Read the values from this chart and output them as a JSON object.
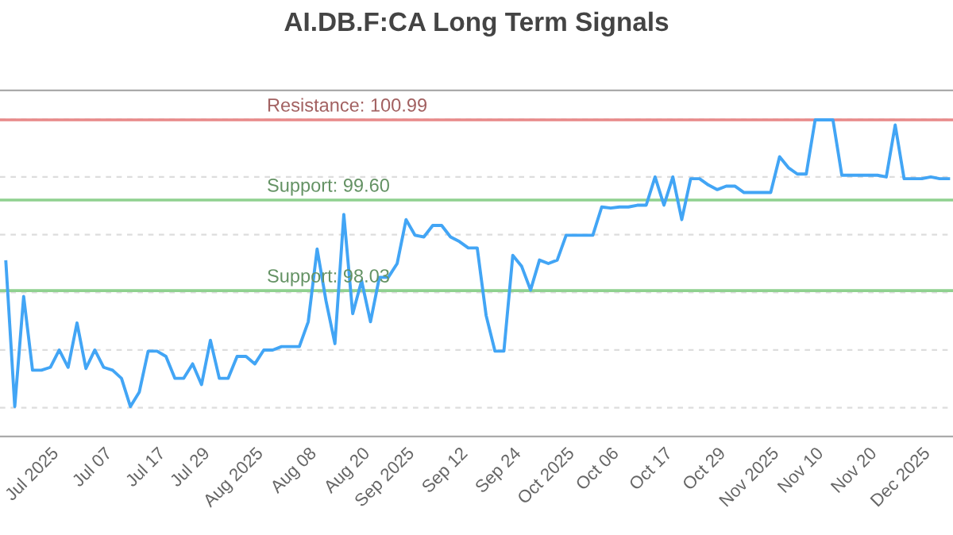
{
  "chart_data": {
    "type": "line",
    "title": "AI.DB.F:CA Long Term Signals",
    "categories": [
      null,
      null,
      null,
      null,
      null,
      "Jul 2025",
      null,
      null,
      null,
      null,
      null,
      "Jul 07",
      null,
      null,
      null,
      null,
      null,
      "Jul 17",
      null,
      null,
      null,
      null,
      "Jul 29",
      null,
      null,
      null,
      null,
      null,
      "Aug 2025",
      null,
      null,
      null,
      null,
      null,
      "Aug 08",
      null,
      null,
      null,
      null,
      null,
      "Aug 20",
      null,
      null,
      null,
      null,
      "Sep 2025",
      null,
      null,
      null,
      null,
      null,
      "Sep 12",
      null,
      null,
      null,
      null,
      null,
      "Sep 24",
      null,
      null,
      null,
      null,
      null,
      "Oct 2025",
      null,
      null,
      null,
      null,
      "Oct 06",
      null,
      null,
      null,
      null,
      null,
      "Oct 17",
      null,
      null,
      null,
      null,
      null,
      "Oct 29",
      null,
      null,
      null,
      null,
      null,
      "Nov 2025",
      null,
      null,
      null,
      null,
      "Nov 10",
      null,
      null,
      null,
      null,
      null,
      "Nov 20",
      null,
      null,
      null,
      null,
      null,
      "Dec 2025",
      null,
      null,
      null
    ],
    "series": [
      {
        "color": "#42a5f5",
        "values": [
          98.53,
          96.02,
          97.93,
          96.65,
          96.65,
          96.7,
          97.0,
          96.7,
          97.47,
          96.68,
          97.0,
          96.7,
          96.65,
          96.51,
          96.02,
          96.27,
          96.98,
          96.98,
          96.89,
          96.51,
          96.51,
          96.76,
          96.4,
          97.17,
          96.51,
          96.51,
          96.89,
          96.89,
          96.76,
          97.0,
          97.0,
          97.06,
          97.06,
          97.06,
          97.49,
          98.75,
          97.85,
          97.11,
          99.35,
          97.63,
          98.2,
          97.49,
          98.26,
          98.26,
          98.5,
          99.26,
          98.99,
          98.96,
          99.16,
          99.16,
          98.96,
          98.88,
          98.77,
          98.77,
          97.6,
          96.98,
          96.98,
          98.64,
          98.45,
          98.04,
          98.56,
          98.5,
          98.56,
          98.99,
          98.99,
          98.99,
          98.99,
          99.48,
          99.46,
          99.48,
          99.48,
          99.51,
          99.51,
          100.0,
          99.51,
          100.0,
          99.26,
          99.97,
          99.97,
          99.86,
          99.78,
          99.84,
          99.84,
          99.73,
          99.73,
          99.73,
          99.73,
          100.35,
          100.16,
          100.05,
          100.05,
          100.99,
          100.99,
          100.99,
          100.03,
          100.03,
          100.03,
          100.03,
          100.03,
          100.0,
          100.9,
          99.97,
          99.97,
          99.97,
          100.0,
          99.97,
          99.97
        ]
      }
    ],
    "ylim": [
      95.5,
      101.5
    ],
    "yticks": [
      {
        "value": 96,
        "label": null
      },
      {
        "value": 97,
        "label": null
      },
      {
        "value": 98,
        "label": null
      },
      {
        "value": 99,
        "label": null
      },
      {
        "value": 100,
        "label": null
      },
      {
        "value": 101,
        "label": null
      }
    ],
    "tick_labels": "x",
    "grid": "y",
    "marker": "none",
    "line_style": "solid",
    "legend": false,
    "ref_lines": [
      {
        "axis": "y",
        "value": 100.99,
        "label": "Resistance: 100.99",
        "color": "#e88a8a"
      },
      {
        "axis": "y",
        "value": 99.6,
        "label": "Support: 99.60",
        "color": "#8fd18f"
      },
      {
        "axis": "y",
        "value": 98.03,
        "label": "Support: 98.03",
        "color": "#8fd18f"
      }
    ]
  }
}
